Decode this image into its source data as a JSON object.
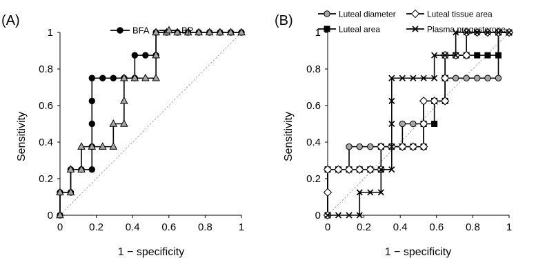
{
  "chart_data": [
    {
      "type": "line",
      "panel_label": "(A)",
      "xlabel": "1 − specificity",
      "ylabel": "Sensitivity",
      "xlim": [
        0,
        1
      ],
      "ylim": [
        0,
        1
      ],
      "xticks": [
        "0",
        "0.2",
        "0.4",
        "0.6",
        "0.8",
        "1"
      ],
      "yticks": [
        "0",
        "0.2",
        "0.4",
        "0.6",
        "0.8",
        "1"
      ],
      "reference_line": "diagonal dashed",
      "legend_position": "top",
      "series": [
        {
          "name": "BFA",
          "marker": "circle",
          "color": "#000000",
          "points": [
            [
              0,
              0
            ],
            [
              0,
              0.125
            ],
            [
              0.059,
              0.125
            ],
            [
              0.059,
              0.25
            ],
            [
              0.118,
              0.25
            ],
            [
              0.176,
              0.25
            ],
            [
              0.176,
              0.375
            ],
            [
              0.176,
              0.5
            ],
            [
              0.176,
              0.625
            ],
            [
              0.176,
              0.75
            ],
            [
              0.235,
              0.75
            ],
            [
              0.294,
              0.75
            ],
            [
              0.353,
              0.75
            ],
            [
              0.412,
              0.75
            ],
            [
              0.412,
              0.875
            ],
            [
              0.471,
              0.875
            ],
            [
              0.529,
              0.875
            ],
            [
              0.529,
              1
            ],
            [
              0.588,
              1
            ],
            [
              0.647,
              1
            ],
            [
              0.706,
              1
            ],
            [
              0.765,
              1
            ],
            [
              0.824,
              1
            ],
            [
              0.882,
              1
            ],
            [
              0.941,
              1
            ],
            [
              1,
              1
            ]
          ]
        },
        {
          "name": "BP",
          "marker": "triangle",
          "color": "#a6a6a6",
          "points": [
            [
              0,
              0
            ],
            [
              0,
              0.125
            ],
            [
              0.059,
              0.125
            ],
            [
              0.059,
              0.25
            ],
            [
              0.118,
              0.25
            ],
            [
              0.118,
              0.375
            ],
            [
              0.176,
              0.375
            ],
            [
              0.235,
              0.375
            ],
            [
              0.294,
              0.375
            ],
            [
              0.294,
              0.5
            ],
            [
              0.353,
              0.5
            ],
            [
              0.353,
              0.625
            ],
            [
              0.353,
              0.75
            ],
            [
              0.412,
              0.75
            ],
            [
              0.471,
              0.75
            ],
            [
              0.529,
              0.75
            ],
            [
              0.529,
              0.875
            ],
            [
              0.529,
              1
            ],
            [
              0.588,
              1
            ],
            [
              0.647,
              1
            ],
            [
              0.706,
              1
            ],
            [
              0.765,
              1
            ],
            [
              0.824,
              1
            ],
            [
              0.882,
              1
            ],
            [
              0.941,
              1
            ],
            [
              1,
              1
            ]
          ]
        }
      ]
    },
    {
      "type": "line",
      "panel_label": "(B)",
      "xlabel": "1 − specificity",
      "ylabel": "Sensitivity",
      "xlim": [
        0,
        1
      ],
      "ylim": [
        0,
        1
      ],
      "xticks": [
        "0",
        "0.2",
        "0.4",
        "0.6",
        "0.8",
        "1"
      ],
      "yticks": [
        "0",
        "0.2",
        "0.4",
        "0.6",
        "0.8",
        "1"
      ],
      "reference_line": "diagonal dashed",
      "legend_position": "top",
      "series": [
        {
          "name": "Luteal diameter",
          "marker": "circle",
          "color": "#a6a6a6",
          "points": [
            [
              0,
              0
            ],
            [
              0,
              0.25
            ],
            [
              0.059,
              0.25
            ],
            [
              0.118,
              0.25
            ],
            [
              0.118,
              0.375
            ],
            [
              0.176,
              0.375
            ],
            [
              0.235,
              0.375
            ],
            [
              0.294,
              0.375
            ],
            [
              0.353,
              0.375
            ],
            [
              0.412,
              0.375
            ],
            [
              0.412,
              0.5
            ],
            [
              0.471,
              0.5
            ],
            [
              0.529,
              0.5
            ],
            [
              0.529,
              0.625
            ],
            [
              0.588,
              0.625
            ],
            [
              0.647,
              0.625
            ],
            [
              0.647,
              0.75
            ],
            [
              0.706,
              0.75
            ],
            [
              0.765,
              0.75
            ],
            [
              0.824,
              0.75
            ],
            [
              0.882,
              0.75
            ],
            [
              0.941,
              0.75
            ],
            [
              0.941,
              1
            ],
            [
              1,
              1
            ]
          ]
        },
        {
          "name": "Luteal area",
          "marker": "square",
          "color": "#000000",
          "points": [
            [
              0,
              0
            ],
            [
              0,
              0.25
            ],
            [
              0.059,
              0.25
            ],
            [
              0.118,
              0.25
            ],
            [
              0.176,
              0.25
            ],
            [
              0.235,
              0.25
            ],
            [
              0.294,
              0.25
            ],
            [
              0.294,
              0.375
            ],
            [
              0.353,
              0.375
            ],
            [
              0.412,
              0.375
            ],
            [
              0.471,
              0.375
            ],
            [
              0.529,
              0.375
            ],
            [
              0.529,
              0.5
            ],
            [
              0.588,
              0.5
            ],
            [
              0.588,
              0.625
            ],
            [
              0.647,
              0.625
            ],
            [
              0.647,
              0.75
            ],
            [
              0.647,
              0.875
            ],
            [
              0.706,
              0.875
            ],
            [
              0.765,
              0.875
            ],
            [
              0.824,
              0.875
            ],
            [
              0.882,
              0.875
            ],
            [
              0.941,
              0.875
            ],
            [
              0.941,
              1
            ],
            [
              1,
              1
            ]
          ]
        },
        {
          "name": "Luteal tissue area",
          "marker": "diamond",
          "color": "#ffffff",
          "points": [
            [
              0,
              0
            ],
            [
              0,
              0.125
            ],
            [
              0,
              0.25
            ],
            [
              0.059,
              0.25
            ],
            [
              0.118,
              0.25
            ],
            [
              0.176,
              0.25
            ],
            [
              0.235,
              0.25
            ],
            [
              0.294,
              0.25
            ],
            [
              0.294,
              0.375
            ],
            [
              0.353,
              0.375
            ],
            [
              0.412,
              0.375
            ],
            [
              0.471,
              0.375
            ],
            [
              0.529,
              0.375
            ],
            [
              0.529,
              0.5
            ],
            [
              0.529,
              0.625
            ],
            [
              0.588,
              0.625
            ],
            [
              0.647,
              0.625
            ],
            [
              0.647,
              0.75
            ],
            [
              0.647,
              0.875
            ],
            [
              0.706,
              0.875
            ],
            [
              0.765,
              0.875
            ],
            [
              0.765,
              1
            ],
            [
              0.824,
              1
            ],
            [
              0.882,
              1
            ],
            [
              0.941,
              1
            ],
            [
              1,
              1
            ]
          ]
        },
        {
          "name": "Plasma progesterone",
          "marker": "x",
          "color": "#000000",
          "points": [
            [
              0,
              0
            ],
            [
              0.059,
              0
            ],
            [
              0.118,
              0
            ],
            [
              0.176,
              0
            ],
            [
              0.176,
              0.125
            ],
            [
              0.235,
              0.125
            ],
            [
              0.294,
              0.125
            ],
            [
              0.294,
              0.25
            ],
            [
              0.353,
              0.25
            ],
            [
              0.353,
              0.375
            ],
            [
              0.353,
              0.5
            ],
            [
              0.353,
              0.625
            ],
            [
              0.353,
              0.75
            ],
            [
              0.412,
              0.75
            ],
            [
              0.471,
              0.75
            ],
            [
              0.529,
              0.75
            ],
            [
              0.588,
              0.75
            ],
            [
              0.588,
              0.875
            ],
            [
              0.647,
              0.875
            ],
            [
              0.706,
              0.875
            ],
            [
              0.706,
              1
            ],
            [
              0.765,
              1
            ],
            [
              0.824,
              1
            ],
            [
              0.882,
              1
            ],
            [
              0.941,
              1
            ],
            [
              1,
              1
            ]
          ]
        }
      ]
    }
  ]
}
